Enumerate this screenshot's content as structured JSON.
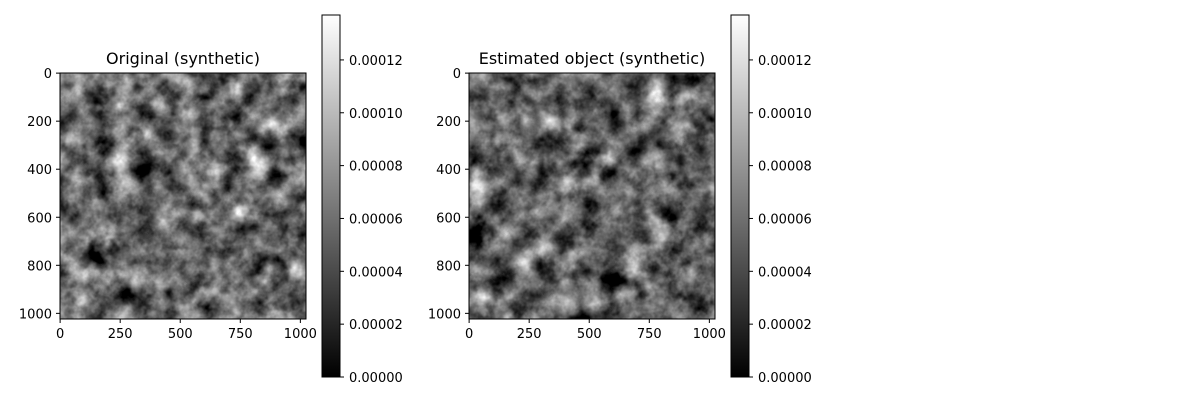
{
  "chart_data": [
    {
      "type": "heatmap",
      "title": "Original (synthetic)",
      "colormap": "gray",
      "texture": "grayscale noise",
      "image_size": [
        1024,
        1024
      ],
      "xticks": [
        "0",
        "250",
        "500",
        "750",
        "1000"
      ],
      "xtick_values": [
        0,
        250,
        500,
        750,
        1000
      ],
      "yticks": [
        "0",
        "200",
        "400",
        "600",
        "800",
        "1000"
      ],
      "ytick_values": [
        0,
        200,
        400,
        600,
        800,
        1000
      ],
      "colorbar": {
        "range": [
          0,
          0.000137
        ],
        "ticks": [
          "0.00000",
          "0.00002",
          "0.00004",
          "0.00006",
          "0.00008",
          "0.00010",
          "0.00012"
        ],
        "tick_values": [
          0,
          2e-05,
          4e-05,
          6e-05,
          8e-05,
          0.0001,
          0.00012
        ]
      }
    },
    {
      "type": "heatmap",
      "title": "Estimated object (synthetic)",
      "colormap": "gray",
      "texture": "grayscale noise",
      "image_size": [
        1024,
        1024
      ],
      "xticks": [
        "0",
        "250",
        "500",
        "750",
        "1000"
      ],
      "xtick_values": [
        0,
        250,
        500,
        750,
        1000
      ],
      "yticks": [
        "0",
        "200",
        "400",
        "600",
        "800",
        "1000"
      ],
      "ytick_values": [
        0,
        200,
        400,
        600,
        800,
        1000
      ],
      "colorbar": {
        "range": [
          0,
          0.000137
        ],
        "ticks": [
          "0.00000",
          "0.00002",
          "0.00004",
          "0.00006",
          "0.00008",
          "0.00010",
          "0.00012"
        ],
        "tick_values": [
          0,
          2e-05,
          4e-05,
          6e-05,
          8e-05,
          0.0001,
          0.00012
        ]
      }
    }
  ]
}
